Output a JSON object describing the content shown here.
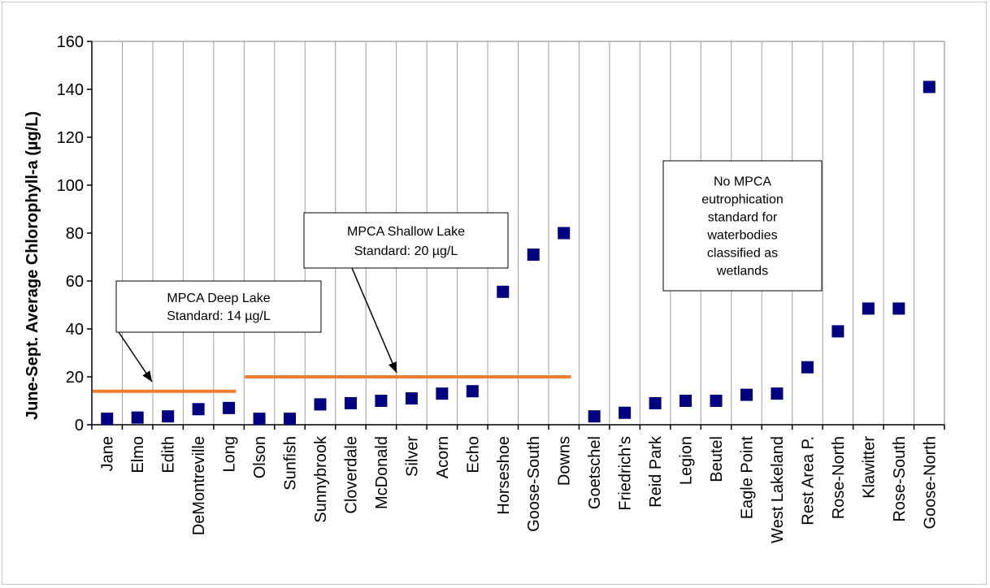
{
  "chart_data": {
    "type": "scatter",
    "title": "",
    "xlabel": "",
    "ylabel": "June-Sept. Average Chlorophyll-a (µg/L)",
    "ylim": [
      0,
      160
    ],
    "yticks": [
      0,
      20,
      40,
      60,
      80,
      100,
      120,
      140,
      160
    ],
    "grid": "vertical",
    "categories": [
      "Jane",
      "Elmo",
      "Edith",
      "DeMontreville",
      "Long",
      "Olson",
      "Sunfish",
      "Sunnybrook",
      "Cloverdale",
      "McDonald",
      "Silver",
      "Acorn",
      "Echo",
      "Horseshoe",
      "Goose-South",
      "Downs",
      "Goetschel",
      "Friedrich's",
      "Reid Park",
      "Legion",
      "Beutel",
      "Eagle Point",
      "West Lakeland",
      "Rest Area P.",
      "Rose-North",
      "Klawitter",
      "Rose-South",
      "Goose-North"
    ],
    "values": [
      2.5,
      3,
      3.5,
      6.5,
      7,
      2.5,
      2.5,
      8.5,
      9,
      10,
      11,
      13,
      14,
      55.5,
      71,
      80,
      3.5,
      5,
      9,
      10,
      10,
      12.5,
      13,
      24,
      39,
      48.5,
      48.5,
      141
    ],
    "marker_color": "#000080",
    "standards": [
      {
        "value": 14,
        "from": "Jane",
        "to": "Long",
        "color": "#ed7d31"
      },
      {
        "value": 20,
        "from": "Olson",
        "to": "Downs",
        "color": "#ed7d31"
      }
    ],
    "annotations": [
      {
        "lines": [
          "MPCA  Deep Lake",
          "Standard: 14 µg/L"
        ]
      },
      {
        "lines": [
          "MPCA  Shallow Lake",
          "Standard: 20 µg/L"
        ]
      },
      {
        "lines": [
          "No MPCA",
          "eutrophication",
          "standard for",
          "waterbodies",
          "classified as",
          "wetlands"
        ]
      }
    ]
  }
}
